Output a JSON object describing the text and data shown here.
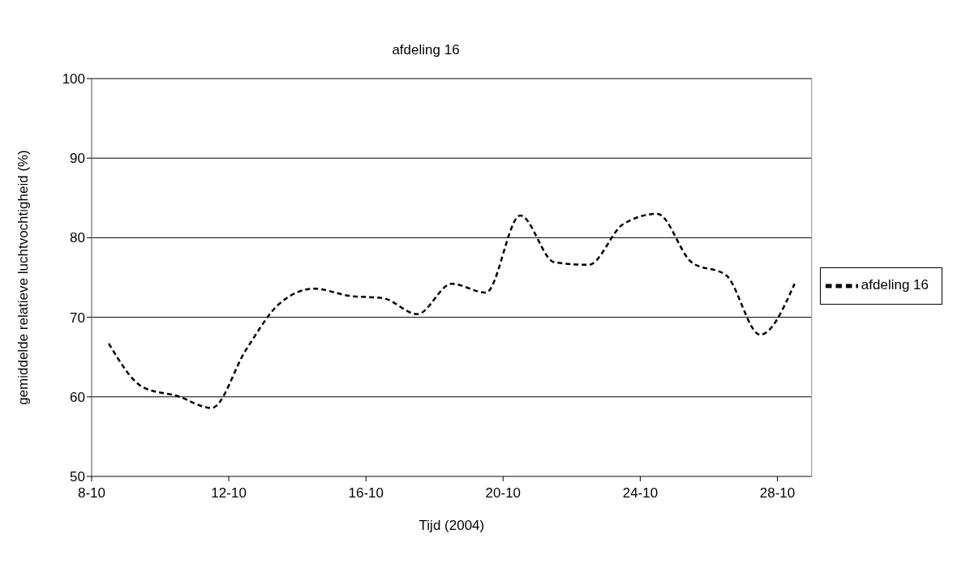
{
  "chart_data": {
    "type": "line",
    "title": "afdeling 16",
    "xlabel": "Tijd (2004)",
    "ylabel": "gemiddelde relatieve luchtvochtigheid (%)",
    "x": [
      "2004-10-08T12:00",
      "2004-10-09T12:00",
      "2004-10-10T12:00",
      "2004-10-11T12:00",
      "2004-10-12T12:00",
      "2004-10-13T12:00",
      "2004-10-14T12:00",
      "2004-10-15T12:00",
      "2004-10-16T12:00",
      "2004-10-17T12:00",
      "2004-10-18T12:00",
      "2004-10-19T12:00",
      "2004-10-20T12:00",
      "2004-10-21T12:00",
      "2004-10-22T12:00",
      "2004-10-23T12:00",
      "2004-10-24T12:00",
      "2004-10-25T12:00",
      "2004-10-26T12:00",
      "2004-10-27T12:00",
      "2004-10-28T12:00"
    ],
    "series": [
      {
        "name": "afdeling 16",
        "color": "#000000",
        "values": [
          66.7,
          61.2,
          60.1,
          58.6,
          65.9,
          71.8,
          73.6,
          72.7,
          72.4,
          70.4,
          74.2,
          73.1,
          82.8,
          76.9,
          76.6,
          81.7,
          83.0,
          76.9,
          75.3,
          67.8,
          74.2
        ]
      }
    ],
    "xlim": [
      "2004-10-08",
      "2004-10-29"
    ],
    "xticks": [
      {
        "value": "2004-10-08",
        "label": "8-10"
      },
      {
        "value": "2004-10-12",
        "label": "12-10"
      },
      {
        "value": "2004-10-16",
        "label": "16-10"
      },
      {
        "value": "2004-10-20",
        "label": "20-10"
      },
      {
        "value": "2004-10-24",
        "label": "24-10"
      },
      {
        "value": "2004-10-28",
        "label": "28-10"
      }
    ],
    "ylim": [
      50,
      100
    ],
    "yticks": [
      50,
      60,
      70,
      80,
      90,
      100
    ],
    "grid": "y",
    "legend": "right",
    "marker": "none",
    "line_style": "dashed"
  }
}
